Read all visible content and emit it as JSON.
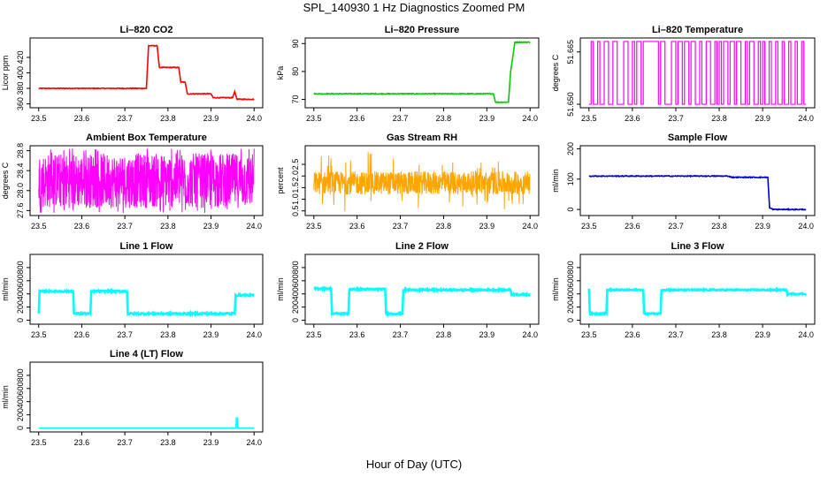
{
  "figure": {
    "title": "SPL_140930  1 Hz Diagnostics Zoomed PM",
    "xlabel": "Hour of Day (UTC)"
  },
  "chart_data": [
    {
      "type": "line",
      "title": "Li–820 CO2",
      "ylabel": "Licor ppm",
      "xlim": [
        23.48,
        24.02
      ],
      "ylim": [
        355,
        445
      ],
      "xticks": [
        23.5,
        23.6,
        23.7,
        23.8,
        23.9,
        24.0
      ],
      "xtick_labels": [
        "23.5",
        "23.6",
        "23.7",
        "23.8",
        "23.9",
        "24.0"
      ],
      "yticks": [
        360,
        380,
        400,
        420
      ],
      "ytick_labels": [
        "360",
        "380",
        "400",
        "420"
      ],
      "series": [
        {
          "color": "#ff0000",
          "noise": 0.5,
          "x": [
            23.5,
            23.75,
            23.755,
            23.775,
            23.78,
            23.825,
            23.83,
            23.84,
            23.845,
            23.9,
            23.905,
            23.95,
            23.955,
            23.96,
            24.0
          ],
          "y": [
            380,
            380,
            435,
            435,
            407,
            407,
            388,
            388,
            373,
            373,
            368,
            368,
            376,
            366,
            366
          ]
        }
      ]
    },
    {
      "type": "line",
      "title": "Li–820 Pressure",
      "ylabel": "kPa",
      "xlim": [
        23.48,
        24.02
      ],
      "ylim": [
        67,
        92
      ],
      "xticks": [
        23.5,
        23.6,
        23.7,
        23.8,
        23.9,
        24.0
      ],
      "xtick_labels": [
        "23.5",
        "23.6",
        "23.7",
        "23.8",
        "23.9",
        "24.0"
      ],
      "yticks": [
        70,
        80,
        90
      ],
      "ytick_labels": [
        "70",
        "80",
        "90"
      ],
      "series": [
        {
          "color": "#00cc00",
          "noise": 0.15,
          "x": [
            23.5,
            23.915,
            23.92,
            23.95,
            23.955,
            23.965,
            24.0
          ],
          "y": [
            72,
            72,
            69,
            69,
            80,
            90.5,
            90.5
          ]
        }
      ]
    },
    {
      "type": "line",
      "title": "Li–820 Temperature",
      "ylabel": "degrees C",
      "xlim": [
        23.48,
        24.02
      ],
      "ylim": [
        51.649,
        51.669
      ],
      "xticks": [
        23.5,
        23.6,
        23.7,
        23.8,
        23.9,
        24.0
      ],
      "xtick_labels": [
        "23.5",
        "23.6",
        "23.7",
        "23.8",
        "23.9",
        "24.0"
      ],
      "yticks": [
        51.65,
        51.665
      ],
      "ytick_labels": [
        "51.650",
        "51.665"
      ],
      "series": [
        {
          "color": "#ff00ff",
          "mode": "binary",
          "y_low": 51.65,
          "y_high": 51.668,
          "switch_x": [
            23.505,
            23.51,
            23.52,
            23.525,
            23.535,
            23.545,
            23.555,
            23.565,
            23.58,
            23.59,
            23.6,
            23.605,
            23.61,
            23.62,
            23.625,
            23.66,
            23.665,
            23.675,
            23.69,
            23.7,
            23.705,
            23.715,
            23.72,
            23.73,
            23.735,
            23.745,
            23.755,
            23.76,
            23.77,
            23.78,
            23.79,
            23.795,
            23.8,
            23.805,
            23.81,
            23.82,
            23.825,
            23.835,
            23.84,
            23.85,
            23.86,
            23.865,
            23.87,
            23.88,
            23.89,
            23.895,
            23.9,
            23.905,
            23.915,
            23.92,
            23.93,
            23.935,
            23.945,
            23.95,
            23.96,
            23.965,
            23.975,
            23.98,
            23.99,
            23.995
          ]
        }
      ]
    },
    {
      "type": "line",
      "title": "Ambient Box Temperature",
      "ylabel": "degrees C",
      "xlim": [
        23.48,
        24.02
      ],
      "ylim": [
        27.5,
        28.9
      ],
      "xticks": [
        23.5,
        23.6,
        23.7,
        23.8,
        23.9,
        24.0
      ],
      "xtick_labels": [
        "23.5",
        "23.6",
        "23.7",
        "23.8",
        "23.9",
        "24.0"
      ],
      "yticks": [
        27.6,
        28.0,
        28.4,
        28.8
      ],
      "ytick_labels": [
        "27.6",
        "28.0",
        "28.4",
        "28.8"
      ],
      "series": [
        {
          "color": "#ff00ff",
          "mode": "noise",
          "x0": 23.5,
          "x1": 24.0,
          "y_low": 27.65,
          "y_high": 28.75,
          "spike_low": 27.55,
          "spike_high": 28.85
        }
      ]
    },
    {
      "type": "line",
      "title": "Gas Stream RH",
      "ylabel": "percent",
      "xlim": [
        23.48,
        24.02
      ],
      "ylim": [
        0.3,
        3.3
      ],
      "xticks": [
        23.5,
        23.6,
        23.7,
        23.8,
        23.9,
        24.0
      ],
      "xtick_labels": [
        "23.5",
        "23.6",
        "23.7",
        "23.8",
        "23.9",
        "24.0"
      ],
      "yticks": [
        0.5,
        1.0,
        1.5,
        2.0,
        2.5
      ],
      "ytick_labels": [
        "0.5",
        "1.0",
        "1.5",
        "2.0",
        "2.5"
      ],
      "series": [
        {
          "color": "#ffa500",
          "mode": "noise",
          "x0": 23.5,
          "x1": 24.0,
          "y_low": 1.2,
          "y_high": 2.2,
          "spike_low": 0.4,
          "spike_high": 3.1
        }
      ]
    },
    {
      "type": "line",
      "title": "Sample Flow",
      "ylabel": "ml/min",
      "xlim": [
        23.48,
        24.02
      ],
      "ylim": [
        -20,
        210
      ],
      "xticks": [
        23.5,
        23.6,
        23.7,
        23.8,
        23.9,
        24.0
      ],
      "xtick_labels": [
        "23.5",
        "23.6",
        "23.7",
        "23.8",
        "23.9",
        "24.0"
      ],
      "yticks": [
        0,
        100,
        200
      ],
      "ytick_labels": [
        "0",
        "100",
        "200"
      ],
      "series": [
        {
          "color": "#0000cd",
          "noise": 1.5,
          "x": [
            23.5,
            23.82,
            23.83,
            23.912,
            23.916,
            23.925,
            24.0
          ],
          "y": [
            110,
            110,
            106,
            106,
            5,
            0,
            0
          ]
        }
      ]
    },
    {
      "type": "line",
      "title": "Line 1 Flow",
      "ylabel": "ml/min",
      "xlim": [
        23.48,
        24.02
      ],
      "ylim": [
        -60,
        1000
      ],
      "xticks": [
        23.5,
        23.6,
        23.7,
        23.8,
        23.9,
        24.0
      ],
      "xtick_labels": [
        "23.5",
        "23.6",
        "23.7",
        "23.8",
        "23.9",
        "24.0"
      ],
      "yticks": [
        0,
        200,
        400,
        600,
        800
      ],
      "ytick_labels": [
        "0",
        "200",
        "400",
        "600",
        "800"
      ],
      "series": [
        {
          "color": "#00ffff",
          "noise": 12,
          "x": [
            23.5,
            23.502,
            23.58,
            23.582,
            23.62,
            23.622,
            23.705,
            23.707,
            23.955,
            23.957,
            24.0
          ],
          "y": [
            100,
            440,
            440,
            100,
            100,
            440,
            440,
            100,
            100,
            380,
            380
          ]
        }
      ]
    },
    {
      "type": "line",
      "title": "Line 2 Flow",
      "ylabel": "ml/min",
      "xlim": [
        23.48,
        24.02
      ],
      "ylim": [
        -60,
        1000
      ],
      "xticks": [
        23.5,
        23.6,
        23.7,
        23.8,
        23.9,
        24.0
      ],
      "xtick_labels": [
        "23.5",
        "23.6",
        "23.7",
        "23.8",
        "23.9",
        "24.0"
      ],
      "yticks": [
        0,
        200,
        400,
        600,
        800
      ],
      "ytick_labels": [
        "0",
        "200",
        "400",
        "600",
        "800"
      ],
      "series": [
        {
          "color": "#00ffff",
          "noise": 12,
          "x": [
            23.5,
            23.54,
            23.542,
            23.58,
            23.582,
            23.665,
            23.667,
            23.705,
            23.707,
            23.955,
            23.957,
            24.0
          ],
          "y": [
            480,
            480,
            100,
            100,
            470,
            470,
            100,
            100,
            460,
            460,
            390,
            390
          ]
        }
      ]
    },
    {
      "type": "line",
      "title": "Line 3 Flow",
      "ylabel": "ml/min",
      "xlim": [
        23.48,
        24.02
      ],
      "ylim": [
        -60,
        1000
      ],
      "xticks": [
        23.5,
        23.6,
        23.7,
        23.8,
        23.9,
        24.0
      ],
      "xtick_labels": [
        "23.5",
        "23.6",
        "23.7",
        "23.8",
        "23.9",
        "24.0"
      ],
      "yticks": [
        0,
        200,
        400,
        600,
        800
      ],
      "ytick_labels": [
        "0",
        "200",
        "400",
        "600",
        "800"
      ],
      "series": [
        {
          "color": "#00ffff",
          "noise": 10,
          "x": [
            23.5,
            23.502,
            23.54,
            23.542,
            23.625,
            23.627,
            23.665,
            23.667,
            23.955,
            23.957,
            24.0
          ],
          "y": [
            480,
            100,
            100,
            460,
            460,
            100,
            100,
            460,
            460,
            400,
            400
          ]
        }
      ]
    },
    {
      "type": "line",
      "title": "Line 4 (LT) Flow",
      "ylabel": "ml/min",
      "xlim": [
        23.48,
        24.02
      ],
      "ylim": [
        -60,
        1000
      ],
      "xticks": [
        23.5,
        23.6,
        23.7,
        23.8,
        23.9,
        24.0
      ],
      "xtick_labels": [
        "23.5",
        "23.6",
        "23.7",
        "23.8",
        "23.9",
        "24.0"
      ],
      "yticks": [
        0,
        200,
        400,
        600,
        800
      ],
      "ytick_labels": [
        "0",
        "200",
        "400",
        "600",
        "800"
      ],
      "series": [
        {
          "color": "#00ffff",
          "noise": 0,
          "x": [
            23.5,
            23.958,
            23.959,
            23.961,
            23.962,
            24.0
          ],
          "y": [
            0,
            0,
            150,
            150,
            0,
            0
          ]
        }
      ]
    }
  ]
}
